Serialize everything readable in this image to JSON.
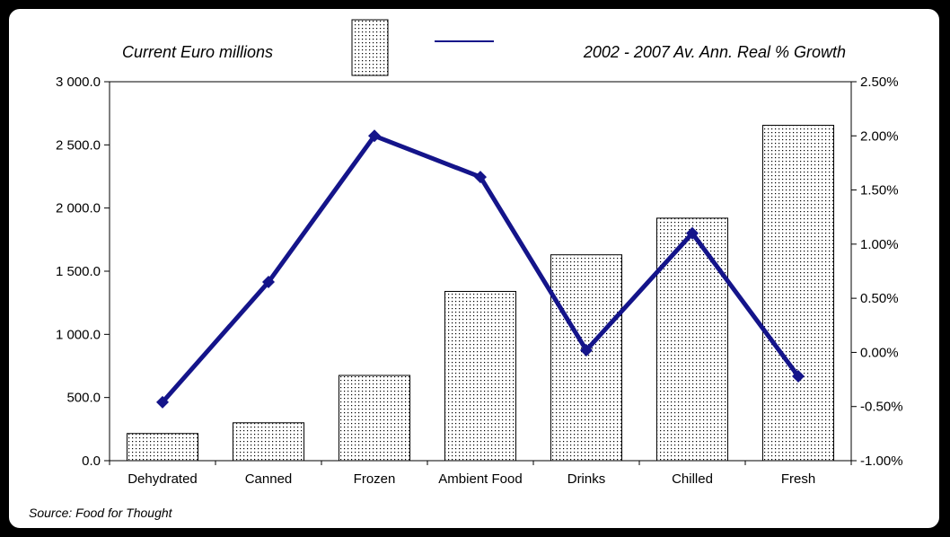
{
  "colors": {
    "line": "#14148a",
    "bar_fill": "#ffffff",
    "bar_dots": "#000000",
    "frame": "#000000"
  },
  "legend": {
    "bars_label": "Current Euro millions",
    "line_label": "2002 - 2007 Av. Ann. Real % Growth"
  },
  "source": "Source: Food for Thought",
  "chart_data": {
    "type": "bar",
    "title": "",
    "categories": [
      "Dehydrated",
      "Canned",
      "Frozen",
      "Ambient Food",
      "Drinks",
      "Chilled",
      "Fresh"
    ],
    "series": [
      {
        "name": "Current Euro millions",
        "type": "bar",
        "axis": "left",
        "values": [
          215,
          300,
          675,
          1340,
          1630,
          1920,
          2655
        ]
      },
      {
        "name": "2002 - 2007 Av. Ann. Real % Growth",
        "type": "line",
        "axis": "right",
        "values": [
          -0.46,
          0.65,
          2.0,
          1.62,
          0.02,
          1.1,
          -0.22
        ]
      }
    ],
    "y_left": {
      "min": 0,
      "max": 3000,
      "step": 500,
      "tick_labels": [
        "0.0",
        "500.0",
        "1 000.0",
        "1 500.0",
        "2 000.0",
        "2 500.0",
        "3 000.0"
      ]
    },
    "y_right": {
      "min": -1.0,
      "max": 2.5,
      "step": 0.5,
      "tick_labels": [
        "-1.00%",
        "-0.50%",
        "0.00%",
        "0.50%",
        "1.00%",
        "1.50%",
        "2.00%",
        "2.50%"
      ]
    },
    "grid": false,
    "legend_position": "top"
  }
}
